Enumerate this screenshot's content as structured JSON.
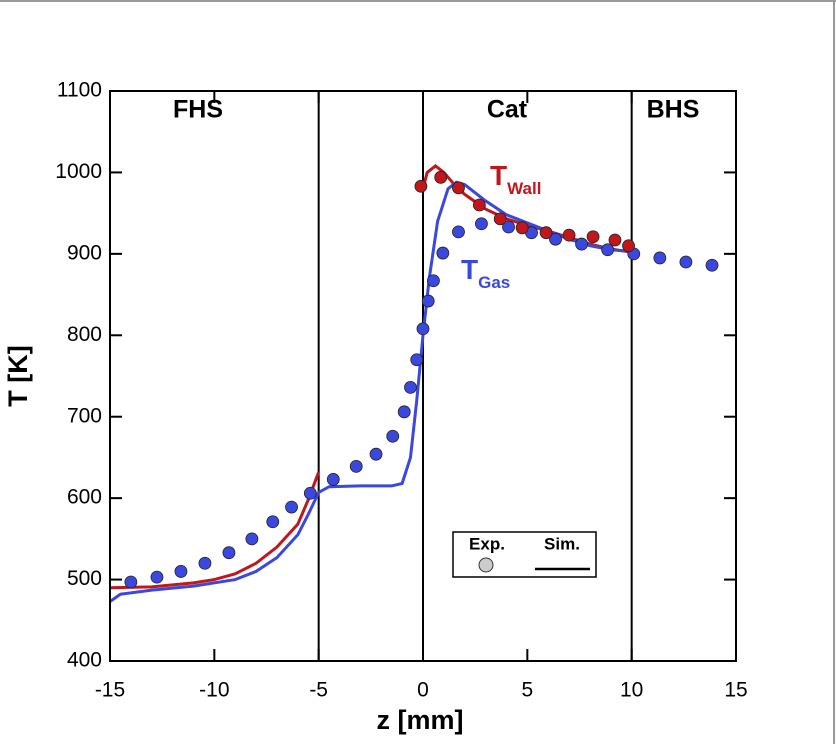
{
  "chart_data": {
    "type": "scatter-line",
    "xlabel": "z [mm]",
    "ylabel": "T  [K]",
    "xlim": [
      -15,
      15
    ],
    "xticks": [
      -15,
      -10,
      -5,
      0,
      5,
      10,
      15
    ],
    "ylim": [
      400,
      1100
    ],
    "yticks": [
      400,
      500,
      600,
      700,
      800,
      900,
      1000,
      1100
    ],
    "vlines": [
      -5,
      0,
      10
    ],
    "regions": [
      "FHS",
      "Cat",
      "BHS"
    ],
    "annotations": [
      {
        "text": "T",
        "sub": "Wall",
        "color": "#c0171c"
      },
      {
        "text": "T",
        "sub": "Gas",
        "color": "#3b48dd"
      }
    ],
    "legend": {
      "items": [
        "Exp.",
        "Sim."
      ]
    },
    "series": [
      {
        "mode": "markers",
        "color": "#3b48dd",
        "x": [
          -14.0,
          -12.75,
          -11.6,
          -10.45,
          -9.3,
          -8.2,
          -7.2,
          -6.3,
          -5.4,
          -4.3,
          -3.2,
          -2.25,
          -1.45,
          -0.9,
          -0.6,
          -0.3,
          0.0,
          0.25,
          0.5,
          0.95,
          1.7,
          2.8,
          4.1,
          5.2,
          6.35,
          7.6,
          8.85,
          10.1,
          11.35,
          12.6,
          13.85
        ],
        "values": [
          497,
          503,
          510,
          520,
          533,
          550,
          571,
          589,
          606,
          623,
          639,
          654,
          676,
          706,
          736,
          770,
          808,
          842,
          867,
          901,
          927,
          937,
          933,
          926,
          918,
          912,
          905,
          900,
          895,
          890,
          886
        ]
      },
      {
        "mode": "markers",
        "color": "#c0171c",
        "x": [
          -0.1,
          0.85,
          1.7,
          2.7,
          3.7,
          4.75,
          5.9,
          7.0,
          8.15,
          9.2,
          9.85
        ],
        "values": [
          983,
          994,
          981,
          960,
          943,
          932,
          926,
          923,
          921,
          917,
          910
        ]
      },
      {
        "mode": "line",
        "color": "#c0171c",
        "x": [
          -15,
          -13,
          -11,
          -10,
          -9,
          -8,
          -7,
          -6,
          -5.5,
          -5
        ],
        "values": [
          490,
          491,
          496,
          500,
          507,
          520,
          540,
          568,
          598,
          632
        ]
      },
      {
        "mode": "line",
        "color": "#c0171c",
        "x": [
          0,
          0.2,
          0.6,
          1,
          1.5,
          2,
          3,
          4,
          5,
          6,
          7,
          8,
          9,
          10
        ],
        "values": [
          980,
          1000,
          1008,
          1000,
          985,
          973,
          955,
          943,
          935,
          928,
          920,
          912,
          906,
          902
        ]
      },
      {
        "mode": "line",
        "color": "#3b48dd",
        "x": [
          -15,
          -14.5,
          -13,
          -11,
          -9,
          -8,
          -7,
          -6,
          -5.5,
          -5,
          -4.5,
          -3,
          -1.5,
          -1,
          -0.6,
          -0.3,
          0,
          0.3,
          0.7,
          1.2,
          1.6,
          2,
          3,
          4,
          5,
          6,
          7,
          8,
          9,
          10
        ],
        "values": [
          473,
          482,
          487,
          492,
          500,
          510,
          527,
          555,
          580,
          607,
          614,
          615,
          615,
          618,
          650,
          720,
          800,
          870,
          940,
          980,
          988,
          985,
          965,
          948,
          938,
          928,
          918,
          910,
          905,
          903
        ]
      }
    ]
  }
}
